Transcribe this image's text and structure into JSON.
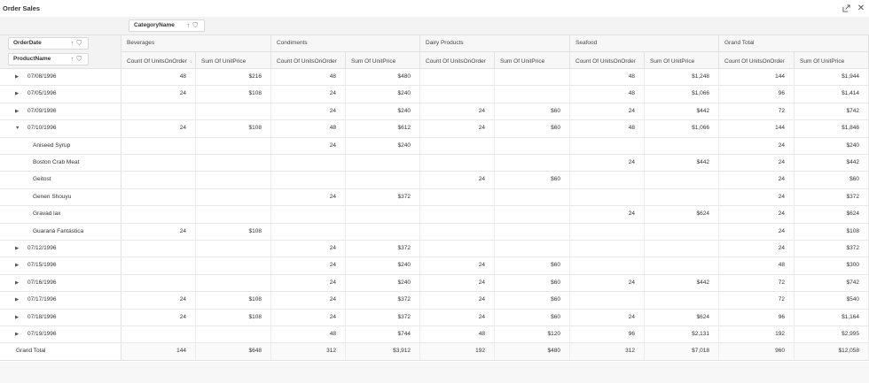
{
  "window": {
    "title": "Order Sales",
    "export_icon": "export-icon",
    "close_icon": "close-icon"
  },
  "column_fields": [
    {
      "label": "CategoryName",
      "icons": [
        "sort-ascending-icon",
        "filter-icon"
      ]
    }
  ],
  "row_fields": [
    {
      "label": "OrderDate",
      "icons": [
        "sort-ascending-icon",
        "filter-icon"
      ]
    },
    {
      "label": "ProductName",
      "icons": [
        "sort-ascending-icon",
        "filter-icon"
      ]
    }
  ],
  "categories": [
    "Beverages",
    "Condiments",
    "Dairy Products",
    "Seafood",
    "Grand Total"
  ],
  "measures": [
    "Count Of UnitsOnOrder",
    "Sum Of UnitPrice"
  ],
  "sorted_measure_icon": "sort-descending-icon",
  "rows": [
    {
      "label": "07/08/1996",
      "type": "collapsed",
      "values": [
        "48",
        "$216",
        "48",
        "$480",
        "",
        "",
        "48",
        "$1,248",
        "144",
        "$1,944"
      ]
    },
    {
      "label": "07/05/1996",
      "type": "collapsed",
      "values": [
        "24",
        "$108",
        "24",
        "$240",
        "",
        "",
        "48",
        "$1,066",
        "96",
        "$1,414"
      ]
    },
    {
      "label": "07/09/1996",
      "type": "collapsed",
      "values": [
        "",
        "",
        "24",
        "$240",
        "24",
        "$60",
        "24",
        "$442",
        "72",
        "$742"
      ]
    },
    {
      "label": "07/10/1996",
      "type": "expanded",
      "values": [
        "24",
        "$108",
        "48",
        "$612",
        "24",
        "$60",
        "48",
        "$1,066",
        "144",
        "$1,846"
      ]
    },
    {
      "label": "Aniseed Syrup",
      "type": "child",
      "values": [
        "",
        "",
        "24",
        "$240",
        "",
        "",
        "",
        "",
        "24",
        "$240"
      ]
    },
    {
      "label": "Boston Crab Meat",
      "type": "child",
      "values": [
        "",
        "",
        "",
        "",
        "",
        "",
        "24",
        "$442",
        "24",
        "$442"
      ]
    },
    {
      "label": "Geitost",
      "type": "child",
      "values": [
        "",
        "",
        "",
        "",
        "24",
        "$60",
        "",
        "",
        "24",
        "$60"
      ]
    },
    {
      "label": "Genen Shouyu",
      "type": "child",
      "values": [
        "",
        "",
        "24",
        "$372",
        "",
        "",
        "",
        "",
        "24",
        "$372"
      ]
    },
    {
      "label": "Gravad lax",
      "type": "child",
      "values": [
        "",
        "",
        "",
        "",
        "",
        "",
        "24",
        "$624",
        "24",
        "$624"
      ]
    },
    {
      "label": "Guaraná Fantástica",
      "type": "child",
      "values": [
        "24",
        "$108",
        "",
        "",
        "",
        "",
        "",
        "",
        "24",
        "$108"
      ]
    },
    {
      "label": "07/12/1996",
      "type": "collapsed",
      "values": [
        "",
        "",
        "24",
        "$372",
        "",
        "",
        "",
        "",
        "24",
        "$372"
      ]
    },
    {
      "label": "07/15/1996",
      "type": "collapsed",
      "values": [
        "",
        "",
        "24",
        "$240",
        "24",
        "$60",
        "",
        "",
        "48",
        "$300"
      ]
    },
    {
      "label": "07/16/1996",
      "type": "collapsed",
      "values": [
        "",
        "",
        "24",
        "$240",
        "24",
        "$60",
        "24",
        "$442",
        "72",
        "$742"
      ]
    },
    {
      "label": "07/17/1996",
      "type": "collapsed",
      "values": [
        "24",
        "$108",
        "24",
        "$372",
        "24",
        "$60",
        "",
        "",
        "72",
        "$540"
      ]
    },
    {
      "label": "07/18/1996",
      "type": "collapsed",
      "values": [
        "24",
        "$108",
        "24",
        "$372",
        "24",
        "$60",
        "24",
        "$624",
        "96",
        "$1,164"
      ]
    },
    {
      "label": "07/19/1996",
      "type": "collapsed",
      "values": [
        "",
        "",
        "48",
        "$744",
        "48",
        "$120",
        "96",
        "$2,131",
        "192",
        "$2,995"
      ]
    }
  ],
  "grand_total": {
    "label": "Grand Total",
    "values": [
      "144",
      "$648",
      "312",
      "$3,912",
      "192",
      "$480",
      "312",
      "$7,018",
      "960",
      "$12,058"
    ]
  },
  "colors": {
    "header_bg": "#f7f7f7",
    "zone_bg": "#f3f3f3",
    "border": "#e2e2e2"
  }
}
